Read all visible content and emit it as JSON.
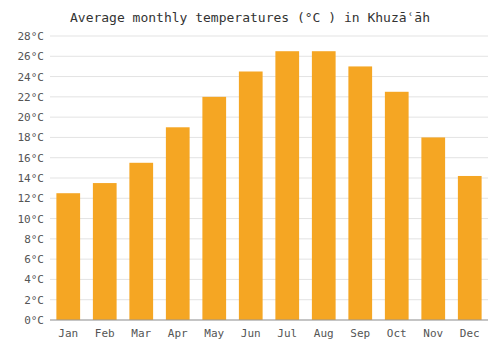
{
  "chart_data": {
    "type": "bar",
    "title": "Average monthly temperatures (°C ) in Khuzāʿāh",
    "categories": [
      "Jan",
      "Feb",
      "Mar",
      "Apr",
      "May",
      "Jun",
      "Jul",
      "Aug",
      "Sep",
      "Oct",
      "Nov",
      "Dec"
    ],
    "values": [
      12.5,
      13.5,
      15.5,
      19.0,
      22.0,
      24.5,
      26.5,
      26.5,
      25.0,
      22.5,
      18.0,
      14.2
    ],
    "color": "#F5A623",
    "ylim": [
      0,
      28
    ],
    "yticks": [
      {
        "value": 0,
        "label": "0°C"
      },
      {
        "value": 2,
        "label": "2°C"
      },
      {
        "value": 4,
        "label": "4°C"
      },
      {
        "value": 6,
        "label": "6°C"
      },
      {
        "value": 8,
        "label": "8°C"
      },
      {
        "value": 10,
        "label": "10°C"
      },
      {
        "value": 12,
        "label": "12°C"
      },
      {
        "value": 14,
        "label": "14°C"
      },
      {
        "value": 16,
        "label": "16°C"
      },
      {
        "value": 18,
        "label": "18°C"
      },
      {
        "value": 20,
        "label": "20°C"
      },
      {
        "value": 22,
        "label": "22°C"
      },
      {
        "value": 24,
        "label": "24°C"
      },
      {
        "value": 26,
        "label": "26°C"
      },
      {
        "value": 28,
        "label": "28°C"
      }
    ],
    "grid": true
  }
}
